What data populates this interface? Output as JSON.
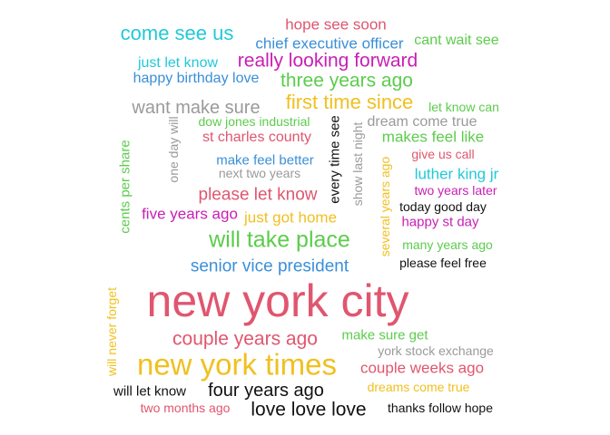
{
  "palette": {
    "pink": "#e0566e",
    "cyan": "#22c9d8",
    "blue": "#3a8fd8",
    "magenta": "#c81fb4",
    "green": "#5ccc4c",
    "gray": "#9a9a9a",
    "yellow": "#f0c020",
    "black": "#111111"
  },
  "words": [
    {
      "text": "hope see soon",
      "color": "pink"
    },
    {
      "text": "come see us",
      "color": "cyan"
    },
    {
      "text": "chief executive officer",
      "color": "blue"
    },
    {
      "text": "cant wait see",
      "color": "green"
    },
    {
      "text": "just let know",
      "color": "cyan"
    },
    {
      "text": "really looking forward",
      "color": "magenta"
    },
    {
      "text": "happy birthday love",
      "color": "blue"
    },
    {
      "text": "three years ago",
      "color": "green"
    },
    {
      "text": "want make sure",
      "color": "gray"
    },
    {
      "text": "first time since",
      "color": "yellow"
    },
    {
      "text": "let know can",
      "color": "green"
    },
    {
      "text": "dow jones industrial",
      "color": "green"
    },
    {
      "text": "dream come true",
      "color": "gray"
    },
    {
      "text": "one day will",
      "color": "gray"
    },
    {
      "text": "every time see",
      "color": "black"
    },
    {
      "text": "show last night",
      "color": "gray"
    },
    {
      "text": "cents per share",
      "color": "green"
    },
    {
      "text": "st charles county",
      "color": "pink"
    },
    {
      "text": "makes feel like",
      "color": "green"
    },
    {
      "text": "give us call",
      "color": "pink"
    },
    {
      "text": "make feel better",
      "color": "blue"
    },
    {
      "text": "several years ago",
      "color": "yellow"
    },
    {
      "text": "luther king jr",
      "color": "cyan"
    },
    {
      "text": "next two years",
      "color": "gray"
    },
    {
      "text": "please let know",
      "color": "pink"
    },
    {
      "text": "two years later",
      "color": "magenta"
    },
    {
      "text": "today good day",
      "color": "black"
    },
    {
      "text": "five years ago",
      "color": "magenta"
    },
    {
      "text": "just got home",
      "color": "yellow"
    },
    {
      "text": "happy st day",
      "color": "magenta"
    },
    {
      "text": "will take place",
      "color": "green"
    },
    {
      "text": "many years ago",
      "color": "green"
    },
    {
      "text": "senior vice president",
      "color": "blue"
    },
    {
      "text": "please feel free",
      "color": "black"
    },
    {
      "text": "new york city",
      "color": "pink"
    },
    {
      "text": "will never forget",
      "color": "yellow"
    },
    {
      "text": "couple years ago",
      "color": "pink"
    },
    {
      "text": "make sure get",
      "color": "green"
    },
    {
      "text": "york stock exchange",
      "color": "gray"
    },
    {
      "text": "new york times",
      "color": "yellow"
    },
    {
      "text": "couple weeks ago",
      "color": "pink"
    },
    {
      "text": "dreams come true",
      "color": "yellow"
    },
    {
      "text": "will let know",
      "color": "black"
    },
    {
      "text": "four years ago",
      "color": "black"
    },
    {
      "text": "two months ago",
      "color": "pink"
    },
    {
      "text": "love love love",
      "color": "black"
    },
    {
      "text": "thanks follow hope",
      "color": "black"
    }
  ]
}
